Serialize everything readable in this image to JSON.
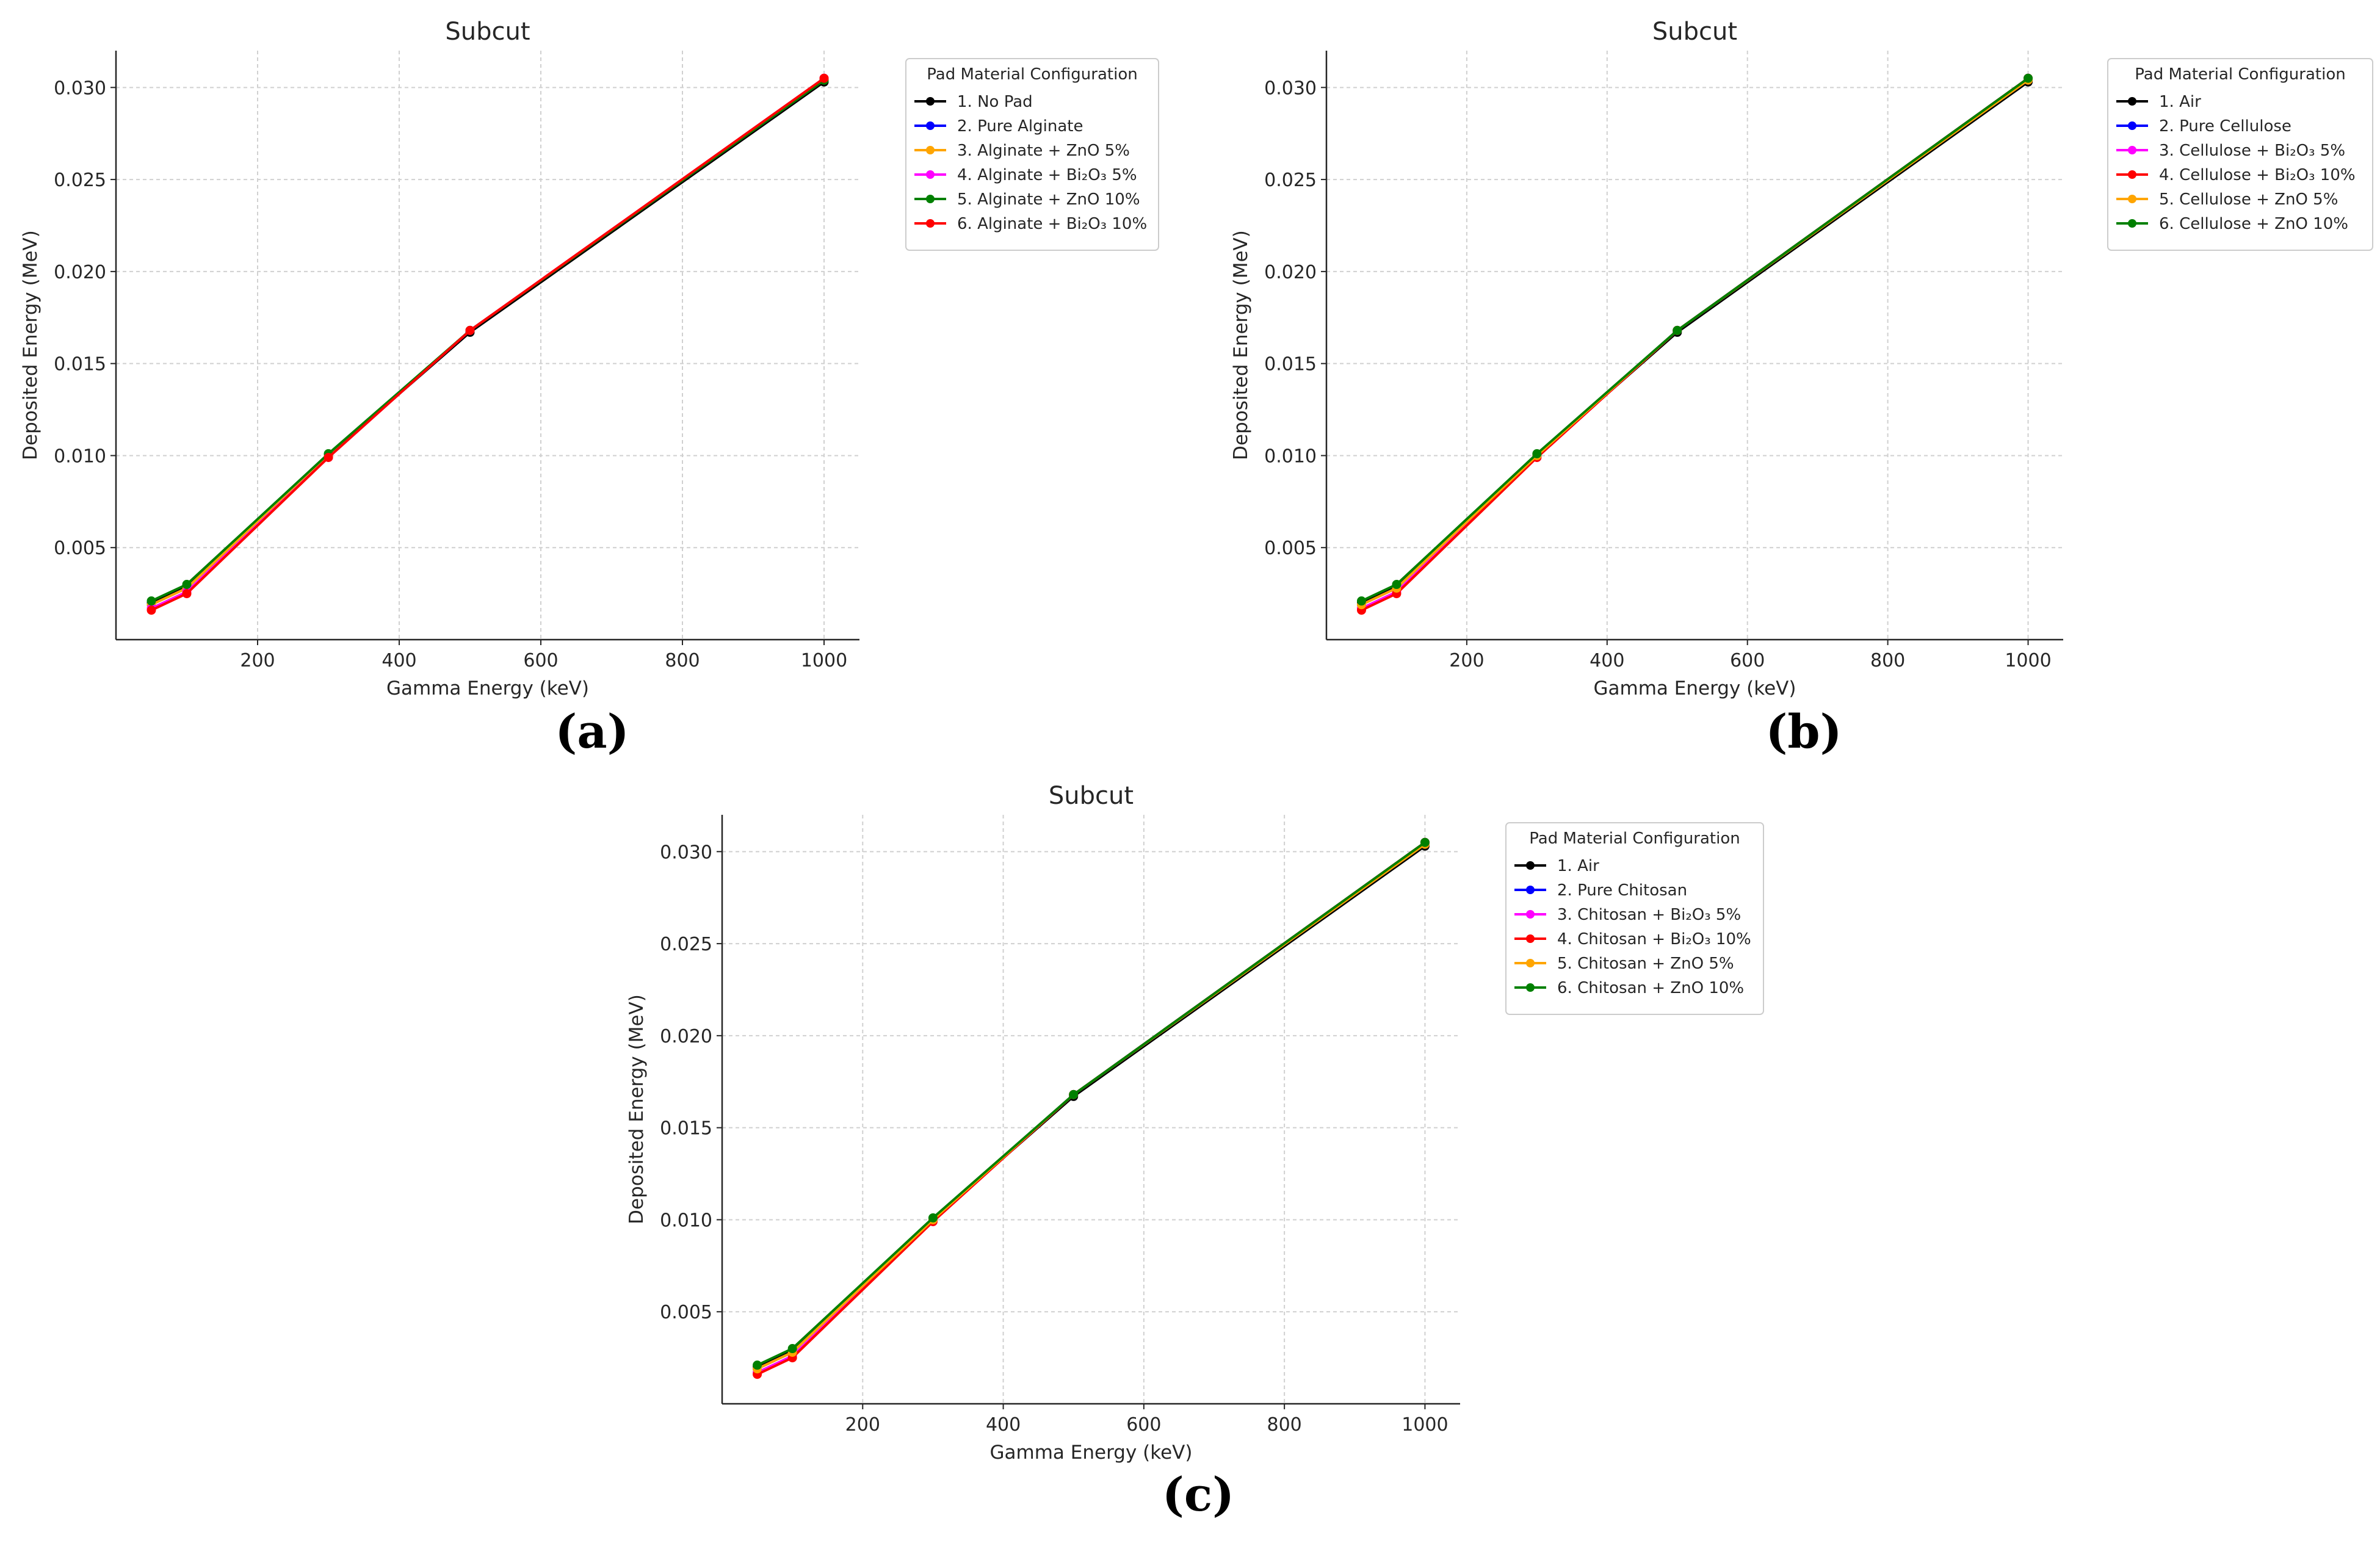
{
  "chart_data": [
    {
      "panel_label": "a",
      "type": "line",
      "title": "Subcut",
      "xlabel": "Gamma Energy (keV)",
      "ylabel": "Deposited Energy (MeV)",
      "xlim": [
        0,
        1050
      ],
      "ylim": [
        0.0,
        0.032
      ],
      "xticks": [
        200,
        400,
        600,
        800,
        1000
      ],
      "yticks": [
        0.005,
        0.01,
        0.015,
        0.02,
        0.025,
        0.03
      ],
      "ytick_labels": [
        "0.005",
        "0.010",
        "0.015",
        "0.020",
        "0.025",
        "0.030"
      ],
      "grid": true,
      "legend_title": "Pad Material Configuration",
      "legend_position": "outside right, top",
      "x": [
        50,
        100,
        300,
        500,
        1000
      ],
      "series": [
        {
          "name": "1. No Pad",
          "color": "#000000",
          "values": [
            0.002,
            0.0029,
            0.01,
            0.0167,
            0.0303
          ]
        },
        {
          "name": "2. Pure Alginate",
          "color": "#0000ff",
          "values": [
            0.0019,
            0.0028,
            0.01,
            0.0168,
            0.0304
          ]
        },
        {
          "name": "3. Alginate + ZnO 5%",
          "color": "#ffa500",
          "values": [
            0.0019,
            0.0028,
            0.01,
            0.0168,
            0.0304
          ]
        },
        {
          "name": "4. Alginate + Bi₂O₃ 5%",
          "color": "#ff00ff",
          "values": [
            0.0017,
            0.0026,
            0.0099,
            0.0168,
            0.0305
          ]
        },
        {
          "name": "5. Alginate + ZnO 10%",
          "color": "#008000",
          "values": [
            0.0021,
            0.003,
            0.0101,
            0.0168,
            0.0304
          ]
        },
        {
          "name": "6. Alginate + Bi₂O₃ 10%",
          "color": "#ff0000",
          "values": [
            0.0016,
            0.0025,
            0.0099,
            0.0168,
            0.0305
          ]
        }
      ]
    },
    {
      "panel_label": "b",
      "type": "line",
      "title": "Subcut",
      "xlabel": "Gamma Energy (keV)",
      "ylabel": "Deposited Energy (MeV)",
      "xlim": [
        0,
        1050
      ],
      "ylim": [
        0.0,
        0.032
      ],
      "xticks": [
        200,
        400,
        600,
        800,
        1000
      ],
      "yticks": [
        0.005,
        0.01,
        0.015,
        0.02,
        0.025,
        0.03
      ],
      "ytick_labels": [
        "0.005",
        "0.010",
        "0.015",
        "0.020",
        "0.025",
        "0.030"
      ],
      "grid": true,
      "legend_title": "Pad Material Configuration",
      "legend_position": "outside right, top",
      "x": [
        50,
        100,
        300,
        500,
        1000
      ],
      "series": [
        {
          "name": "1. Air",
          "color": "#000000",
          "values": [
            0.002,
            0.0029,
            0.01,
            0.0167,
            0.0303
          ]
        },
        {
          "name": "2. Pure Cellulose",
          "color": "#0000ff",
          "values": [
            0.0019,
            0.0028,
            0.01,
            0.0168,
            0.0304
          ]
        },
        {
          "name": "3. Cellulose + Bi₂O₃ 5%",
          "color": "#ff00ff",
          "values": [
            0.0017,
            0.0026,
            0.0099,
            0.0168,
            0.0305
          ]
        },
        {
          "name": "4. Cellulose + Bi₂O₃ 10%",
          "color": "#ff0000",
          "values": [
            0.0016,
            0.0025,
            0.0099,
            0.0168,
            0.0305
          ]
        },
        {
          "name": "5. Cellulose + ZnO 5%",
          "color": "#ffa500",
          "values": [
            0.0019,
            0.0028,
            0.01,
            0.0168,
            0.0304
          ]
        },
        {
          "name": "6. Cellulose + ZnO 10%",
          "color": "#008000",
          "values": [
            0.0021,
            0.003,
            0.0101,
            0.0168,
            0.0305
          ]
        }
      ]
    },
    {
      "panel_label": "c",
      "type": "line",
      "title": "Subcut",
      "xlabel": "Gamma Energy (keV)",
      "ylabel": "Deposited Energy (MeV)",
      "xlim": [
        0,
        1050
      ],
      "ylim": [
        0.0,
        0.032
      ],
      "xticks": [
        200,
        400,
        600,
        800,
        1000
      ],
      "yticks": [
        0.005,
        0.01,
        0.015,
        0.02,
        0.025,
        0.03
      ],
      "ytick_labels": [
        "0.005",
        "0.010",
        "0.015",
        "0.020",
        "0.025",
        "0.030"
      ],
      "grid": true,
      "legend_title": "Pad Material Configuration",
      "legend_position": "outside right, top",
      "x": [
        50,
        100,
        300,
        500,
        1000
      ],
      "series": [
        {
          "name": "1. Air",
          "color": "#000000",
          "values": [
            0.002,
            0.0029,
            0.01,
            0.0167,
            0.0303
          ]
        },
        {
          "name": "2. Pure Chitosan",
          "color": "#0000ff",
          "values": [
            0.0019,
            0.0028,
            0.01,
            0.0168,
            0.0304
          ]
        },
        {
          "name": "3. Chitosan + Bi₂O₃ 5%",
          "color": "#ff00ff",
          "values": [
            0.0017,
            0.0026,
            0.0099,
            0.0168,
            0.0305
          ]
        },
        {
          "name": "4. Chitosan + Bi₂O₃ 10%",
          "color": "#ff0000",
          "values": [
            0.0016,
            0.0025,
            0.0099,
            0.0168,
            0.0305
          ]
        },
        {
          "name": "5. Chitosan + ZnO 5%",
          "color": "#ffa500",
          "values": [
            0.0019,
            0.0028,
            0.01,
            0.0168,
            0.0304
          ]
        },
        {
          "name": "6. Chitosan + ZnO 10%",
          "color": "#008000",
          "values": [
            0.0021,
            0.003,
            0.0101,
            0.0168,
            0.0305
          ]
        }
      ]
    }
  ],
  "captions": [
    "(a)",
    "(b)",
    "(c)"
  ]
}
